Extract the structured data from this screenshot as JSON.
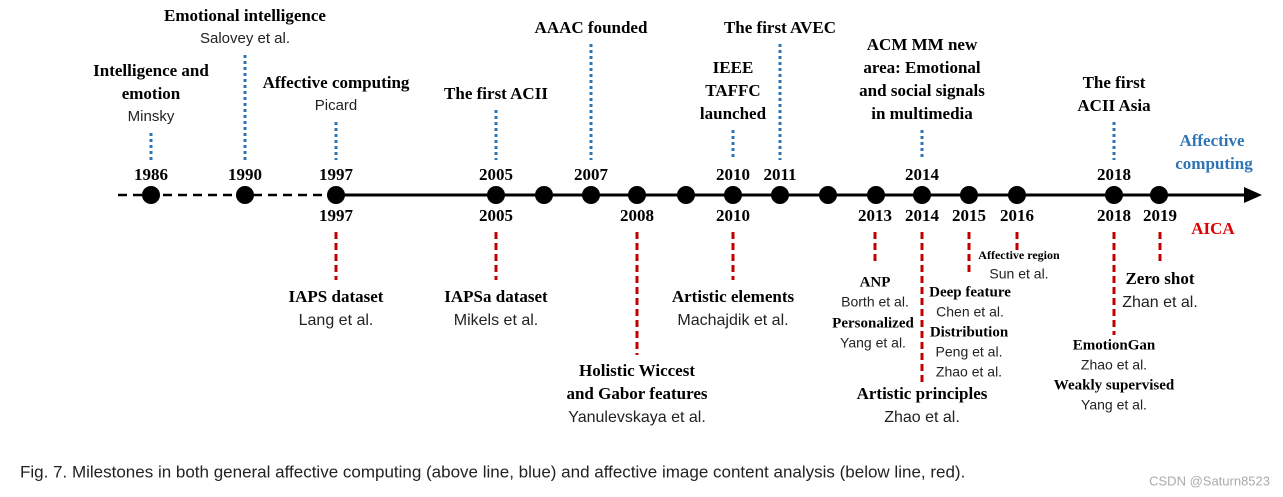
{
  "above": [
    {
      "year": "1986",
      "title": [
        "Intelligence and",
        "emotion"
      ],
      "author": "Minsky"
    },
    {
      "year": "1990",
      "title": [
        "Emotional intelligence"
      ],
      "author": "Salovey et al."
    },
    {
      "year": "1997",
      "title": [
        "Affective computing"
      ],
      "author": "Picard"
    },
    {
      "year": "2005",
      "title": [
        "The first ACII"
      ]
    },
    {
      "year": "2007",
      "title": [
        "AAAC founded"
      ]
    },
    {
      "year": "2010",
      "title": [
        "IEEE",
        "TAFFC",
        "launched"
      ]
    },
    {
      "year": "2011",
      "title": [
        "The first AVEC"
      ]
    },
    {
      "year": "2014",
      "title": [
        "ACM MM new",
        "area: Emotional",
        "and social signals",
        "in multimedia"
      ]
    },
    {
      "year": "2018",
      "title": [
        "The first",
        "ACII Asia"
      ]
    }
  ],
  "above_label": [
    "Affective",
    "computing"
  ],
  "below_years": [
    "1997",
    "2005",
    "2008",
    "2010",
    "2013",
    "2014",
    "2015",
    "2016",
    "2018",
    "2019"
  ],
  "below": [
    {
      "title": [
        "IAPS dataset"
      ],
      "authors": [
        "Lang et al."
      ]
    },
    {
      "title": [
        "IAPSa dataset"
      ],
      "authors": [
        "Mikels et al."
      ]
    },
    {
      "title": [
        "Holistic Wiccest",
        "and Gabor features"
      ],
      "authors": [
        "Yanulevskaya et al."
      ]
    },
    {
      "title": [
        "Artistic elements"
      ],
      "authors": [
        "Machajdik et al."
      ]
    },
    {
      "title": [
        "ANP"
      ],
      "authors": [
        "Borth et al."
      ]
    },
    {
      "title": [
        "Personalized"
      ],
      "authors": [
        "Yang et al."
      ]
    },
    {
      "title": [
        "Artistic principles"
      ],
      "authors": [
        "Zhao et al."
      ]
    },
    {
      "title": [
        "Deep feature"
      ],
      "authors": [
        "Chen et al."
      ]
    },
    {
      "title": [
        "Distribution"
      ],
      "authors": [
        "Peng et al.",
        "Zhao et al."
      ]
    },
    {
      "title": [
        "Affective region"
      ],
      "authors": [
        "Sun et al."
      ]
    },
    {
      "title": [
        "EmotionGan"
      ],
      "authors": [
        "Zhao et al."
      ]
    },
    {
      "title": [
        "Weakly supervised"
      ],
      "authors": [
        "Yang et al."
      ]
    },
    {
      "title": [
        "Zero shot"
      ],
      "authors": [
        "Zhan et al."
      ]
    }
  ],
  "below_label": "AICA",
  "caption": "Fig. 7. Milestones in both general affective computing (above line, blue) and affective image content analysis (below line, red).",
  "watermark": "CSDN @Saturn8523"
}
